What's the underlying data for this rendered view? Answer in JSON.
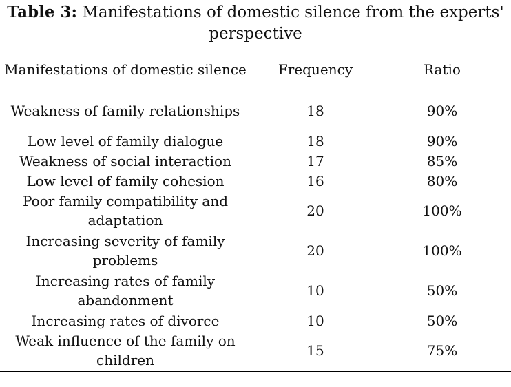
{
  "caption": {
    "label": "Table 3:",
    "text": "Manifestations of domestic silence from the experts' perspective"
  },
  "header": {
    "col1": "Manifestations of domestic silence",
    "col2": "Frequency",
    "col3": "Ratio"
  },
  "rows": [
    {
      "manifestation": "Weakness of family relationships",
      "frequency": "18",
      "ratio": "90%"
    },
    {
      "manifestation": "Low level of family dialogue",
      "frequency": "18",
      "ratio": "90%"
    },
    {
      "manifestation": "Weakness of social interaction",
      "frequency": "17",
      "ratio": "85%"
    },
    {
      "manifestation": "Low level of family cohesion",
      "frequency": "16",
      "ratio": "80%"
    },
    {
      "manifestation": "Poor family compatibility and adaptation",
      "frequency": "20",
      "ratio": "100%"
    },
    {
      "manifestation": "Increasing severity of family problems",
      "frequency": "20",
      "ratio": "100%"
    },
    {
      "manifestation": "Increasing rates of family abandonment",
      "frequency": "10",
      "ratio": "50%"
    },
    {
      "manifestation": "Increasing rates of divorce",
      "frequency": "10",
      "ratio": "50%"
    },
    {
      "manifestation": "Weak influence of the family on children",
      "frequency": "15",
      "ratio": "75%"
    }
  ]
}
